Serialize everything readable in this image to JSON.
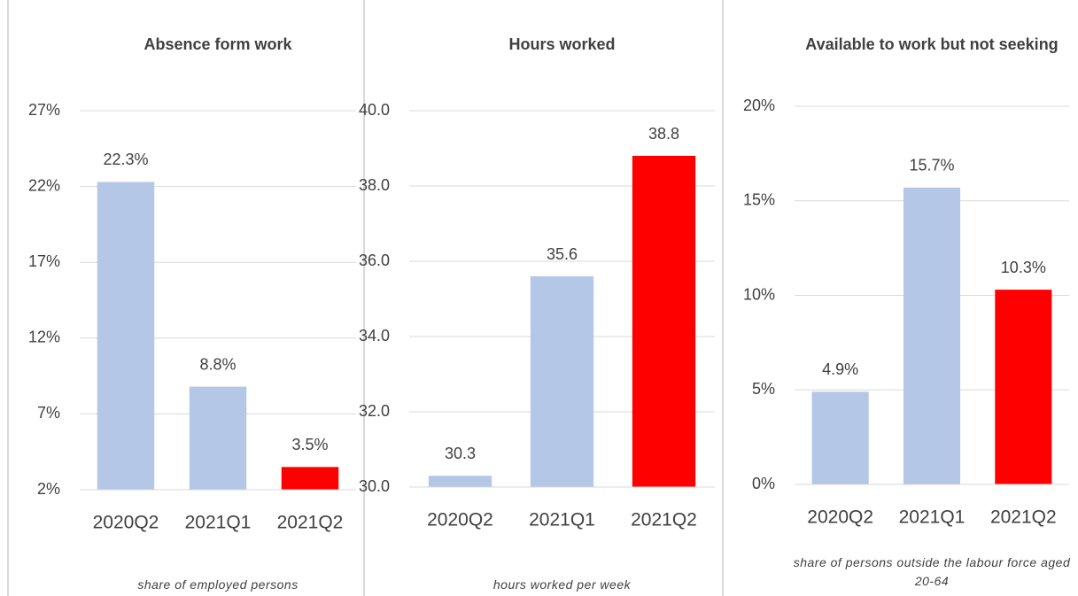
{
  "chart_data": [
    {
      "type": "bar",
      "title": "Absence form work",
      "note": "share of employed persons",
      "categories": [
        "2020Q2",
        "2021Q1",
        "2021Q2"
      ],
      "values": [
        22.3,
        8.8,
        3.5
      ],
      "value_labels": [
        "22.3%",
        "8.8%",
        "3.5%"
      ],
      "colors": [
        "#b4c7e7",
        "#b4c7e7",
        "#ff0000"
      ],
      "ylim": [
        2,
        27
      ],
      "yticks": [
        {
          "value": 2,
          "label": "2%"
        },
        {
          "value": 7,
          "label": "7%"
        },
        {
          "value": 12,
          "label": "12%"
        },
        {
          "value": 17,
          "label": "17%"
        },
        {
          "value": 22,
          "label": "22%"
        },
        {
          "value": 27,
          "label": "27%"
        }
      ],
      "grid": true
    },
    {
      "type": "bar",
      "title": "Hours worked",
      "note": "hours worked  per week",
      "categories": [
        "2020Q2",
        "2021Q1",
        "2021Q2"
      ],
      "values": [
        30.3,
        35.6,
        38.8
      ],
      "colors": [
        "#b4c7e7",
        "#b4c7e7",
        "#ff0000"
      ],
      "ylim": [
        30,
        40
      ],
      "yticks": [
        {
          "value": 30,
          "label": "30.0"
        },
        {
          "value": 32,
          "label": "32.0"
        },
        {
          "value": 34,
          "label": "34.0"
        },
        {
          "value": 36,
          "label": "36.0"
        },
        {
          "value": 38,
          "label": "38.0"
        },
        {
          "value": 40,
          "label": "40.0"
        }
      ],
      "grid": true
    },
    {
      "type": "bar",
      "title": "Available to work but not seeking",
      "note": "share of persons outside the labour force aged 20-64",
      "categories": [
        "2020Q2",
        "2021Q1",
        "2021Q2"
      ],
      "values": [
        4.9,
        15.7,
        10.3
      ],
      "value_labels": [
        "4.9%",
        "15.7%",
        "10.3%"
      ],
      "colors": [
        "#b4c7e7",
        "#b4c7e7",
        "#ff0000"
      ],
      "ylim": [
        0,
        20
      ],
      "yticks": [
        {
          "value": 0,
          "label": "0%"
        },
        {
          "value": 5,
          "label": "5%"
        },
        {
          "value": 10,
          "label": "10%"
        },
        {
          "value": 15,
          "label": "15%"
        },
        {
          "value": 20,
          "label": "20%"
        }
      ],
      "grid": true
    }
  ]
}
